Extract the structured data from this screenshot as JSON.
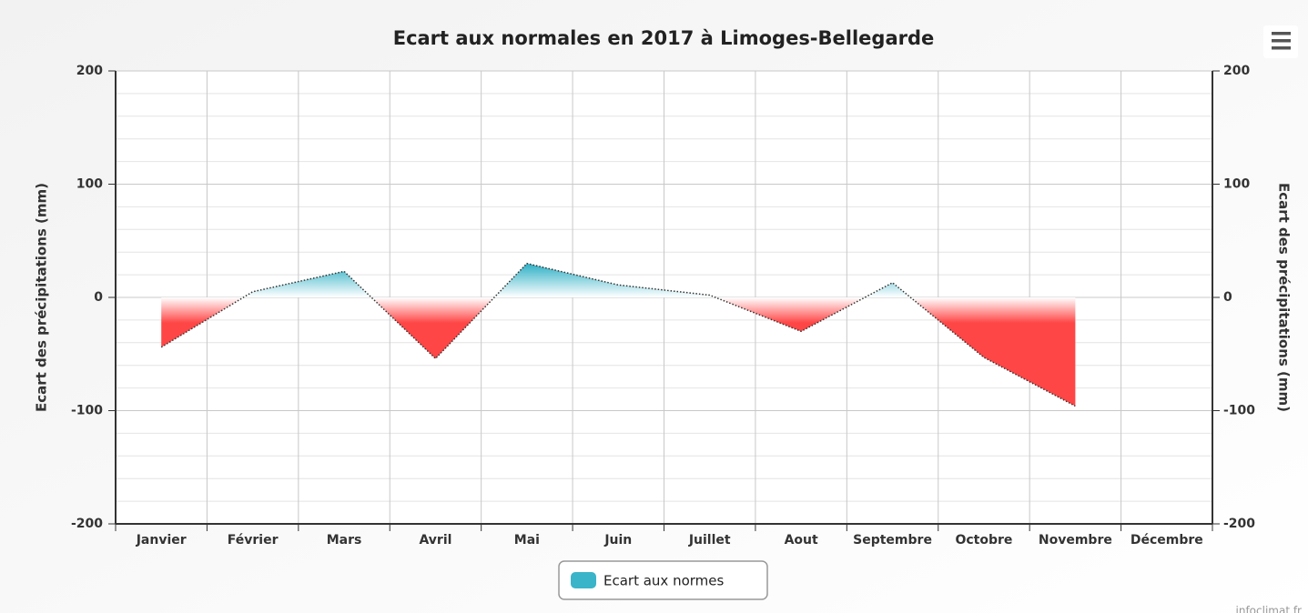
{
  "chart_data": {
    "type": "area",
    "title": "Ecart aux normales en 2017 à Limoges-Bellegarde",
    "categories": [
      "Janvier",
      "Février",
      "Mars",
      "Avril",
      "Mai",
      "Juin",
      "Juillet",
      "Aout",
      "Septembre",
      "Octobre",
      "Novembre",
      "Décembre"
    ],
    "series": [
      {
        "name": "Ecart aux normes",
        "color": "#3ab4c8",
        "negative_color": "#ff4646",
        "values": [
          -44,
          5,
          23,
          -54,
          30,
          11,
          2,
          -30,
          13,
          -53,
          -96,
          null
        ]
      }
    ],
    "y_label": "Ecart des précipitations (mm)",
    "y2_label": "Ecart des précipitations (mm)",
    "ylim": [
      -200,
      200
    ],
    "yticks": [
      -200,
      -100,
      0,
      100,
      200
    ],
    "y2lim": [
      -200,
      200
    ],
    "y2ticks": [
      -200,
      -100,
      0,
      100,
      200
    ],
    "minor_yticks": [
      -180,
      -160,
      -140,
      -120,
      -80,
      -60,
      -40,
      -20,
      20,
      40,
      60,
      80,
      120,
      140,
      160,
      180
    ],
    "grid": true,
    "legend": "bottom",
    "credit": "infoclimat.fr"
  }
}
